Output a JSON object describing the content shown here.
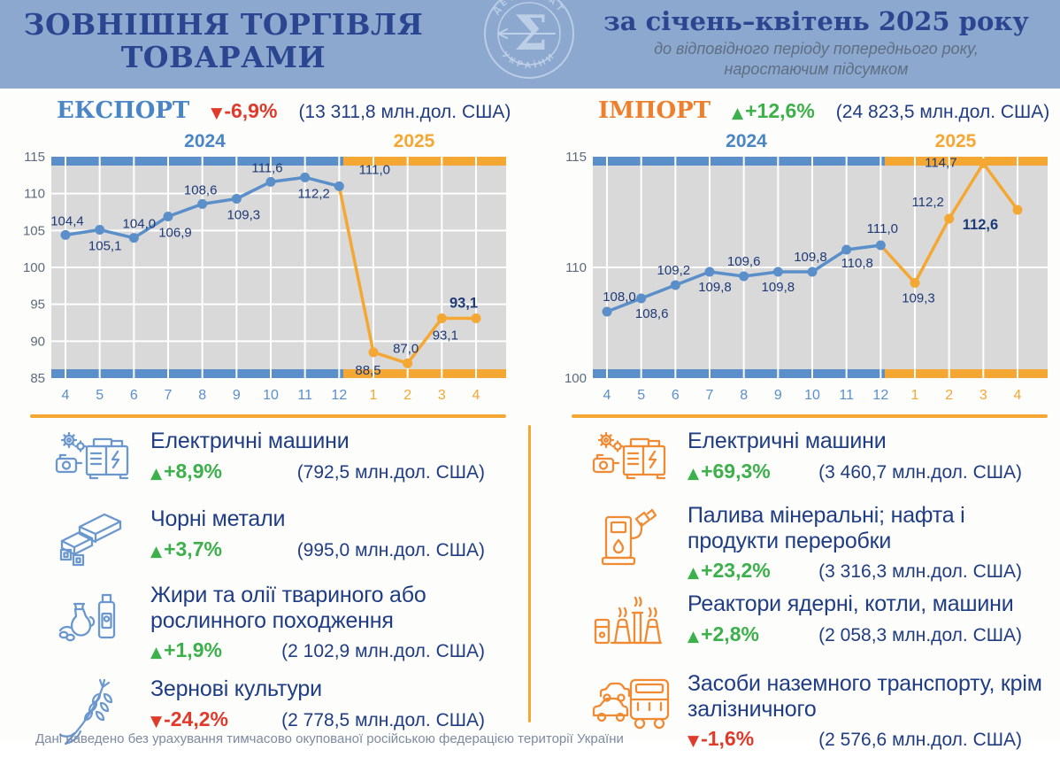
{
  "header": {
    "title_line1": "ЗОВНІШНЯ ТОРГІВЛЯ",
    "title_line2": "ТОВАРАМИ",
    "period_title": "за січень–квітень 2025 року",
    "period_subtitle_line1": "до відповідного періоду попереднього року,",
    "period_subtitle_line2": "наростаючим підсумком",
    "logo_text_top": "ДЕРЖСТАТ",
    "logo_text_bottom": "УКРАЇНИ",
    "logo_glyph": "Σ"
  },
  "export_panel": {
    "label": "ЕКСПОРТ",
    "arrow": "▼",
    "change": "-6,9%",
    "total": "(13 311,8  млн.дол. США)",
    "year_2024": "2024",
    "year_2025": "2025"
  },
  "import_panel": {
    "label": "ІМПОРТ",
    "arrow": "▲",
    "change": "+12,6%",
    "total": "(24 823,5 млн.дол. США)",
    "year_2024": "2024",
    "year_2025": "2025"
  },
  "chart_data": [
    {
      "type": "line",
      "title": "ЕКСПОРТ",
      "change_vs_prev_year": "-6,9%",
      "total": "13 311,8 млн.дол. США",
      "x_months": [
        "4",
        "5",
        "6",
        "7",
        "8",
        "9",
        "10",
        "11",
        "12",
        "1",
        "2",
        "3",
        "4"
      ],
      "months_2024_count": 9,
      "values": [
        104.4,
        105.1,
        104.0,
        106.9,
        108.6,
        109.3,
        111.6,
        112.2,
        111.0,
        88.5,
        87.0,
        93.1,
        93.1
      ],
      "value_labels": [
        "104,4",
        "105,1",
        "104,0",
        "106,9",
        "108,6",
        "109,3",
        "111,6",
        "112,2",
        "111,0",
        "88,5",
        "87,0",
        "93,1",
        "93,1"
      ],
      "yticks": [
        "115",
        "110",
        "105",
        "100",
        "95",
        "90",
        "85"
      ],
      "ylim": [
        85,
        115
      ],
      "grid": true,
      "legend_position": "top",
      "series_colors": {
        "2024": "#5B8FC9",
        "2025": "#F5A733"
      }
    },
    {
      "type": "line",
      "title": "ІМПОРТ",
      "change_vs_prev_year": "+12,6%",
      "total": "24 823,5 млн.дол. США",
      "x_months": [
        "4",
        "5",
        "6",
        "7",
        "8",
        "9",
        "10",
        "11",
        "12",
        "1",
        "2",
        "3",
        "4"
      ],
      "months_2024_count": 9,
      "values": [
        108.0,
        108.6,
        109.2,
        109.8,
        109.6,
        109.8,
        109.8,
        110.8,
        111.0,
        109.3,
        112.2,
        114.7,
        112.6
      ],
      "value_labels": [
        "108,0",
        "108,6",
        "109,2",
        "109,8",
        "109,6",
        "109,8",
        "109,8",
        "110,8",
        "111,0",
        "109,3",
        "112,2",
        "114,7",
        "112,6"
      ],
      "yticks": [
        "115",
        "110",
        "100"
      ],
      "ylim": [
        100,
        115
      ],
      "grid": true,
      "legend_position": "top",
      "series_colors": {
        "2024": "#5B8FC9",
        "2025": "#F5A733"
      }
    }
  ],
  "export_items": [
    {
      "icon": "electric-machines-icon",
      "title": "Електричні машини",
      "arrow": "▲",
      "change": "+8,9%",
      "value": "(792,5 млн.дол. США)"
    },
    {
      "icon": "ferrous-metals-icon",
      "title": "Чорні метали",
      "arrow": "▲",
      "change": "+3,7%",
      "value": "(995,0 млн.дол. США)"
    },
    {
      "icon": "fats-oils-icon",
      "title": "Жири та олії твариного або рослинного походження",
      "arrow": "▲",
      "change": "+1,9%",
      "value": "(2 102,9 млн.дол. США)"
    },
    {
      "icon": "cereals-icon",
      "title": "Зернові культури",
      "arrow": "▼",
      "change": "-24,2%",
      "value": "(2 778,5 млн.дол. США)"
    }
  ],
  "import_items": [
    {
      "icon": "electric-machines-icon",
      "title": "Електричні машини",
      "arrow": "▲",
      "change": "+69,3%",
      "value": "(3 460,7 млн.дол. США)"
    },
    {
      "icon": "fuel-pump-icon",
      "title": "Палива мінеральні; нафта і продукти переробки",
      "arrow": "▲",
      "change": "+23,2%",
      "value": "(3 316,3 млн.дол. США)"
    },
    {
      "icon": "nuclear-reactor-icon",
      "title": "Реактори ядерні, котли, машини",
      "arrow": "▲",
      "change": "+2,8%",
      "value": "(2 058,3 млн.дол. США)"
    },
    {
      "icon": "ground-transport-icon",
      "title": "Засоби наземного транспорту, крім залізничного",
      "arrow": "▼",
      "change": "-1,6%",
      "value": "(2 576,6 млн.дол. США)"
    }
  ],
  "footnote": "Дані наведено без урахування тимчасово окупованої російською федерацією території України",
  "colors": {
    "header_bg": "#8CA8CE",
    "navy_text": "#203C82",
    "blue_2024": "#5B8FC9",
    "orange_2025": "#F5A733",
    "export_label": "#4A86C5",
    "import_label": "#EE7F2D",
    "up_green": "#3CB04A",
    "down_red": "#E03A2B",
    "plot_bg": "#D9D9D9"
  }
}
